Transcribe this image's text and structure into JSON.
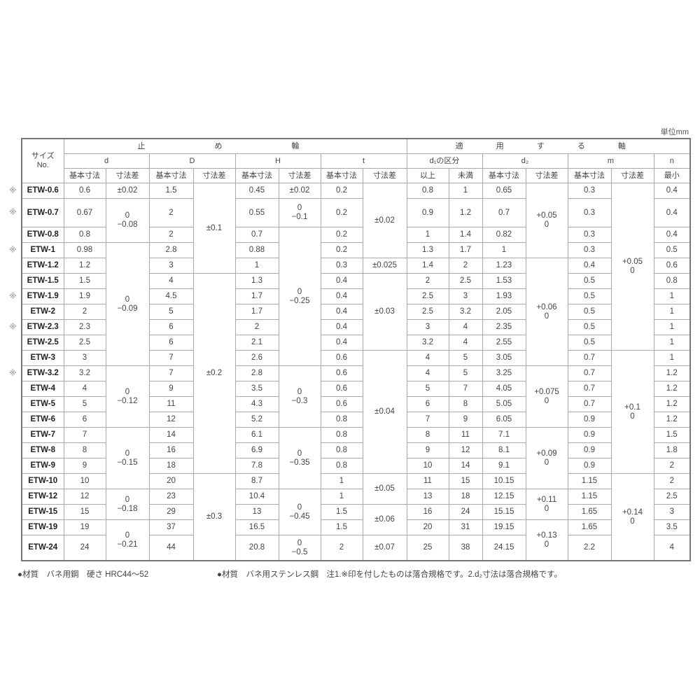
{
  "unit_label": "単位mm",
  "header": {
    "size_no": [
      "サイズ",
      "No."
    ],
    "group_ring": "止 め 輪",
    "group_shaft": "適 用 す る 軸",
    "cols": {
      "d": "d",
      "D": "D",
      "H": "H",
      "t": "t",
      "d1": "d₁の区分",
      "d2": "d₂",
      "m": "m",
      "n": "n"
    },
    "sub": {
      "basic": "基本寸法",
      "tol": "寸法差",
      "min_incl": "以上",
      "max_excl": "未満",
      "minimum": "最小"
    }
  },
  "mark_symbol": "※",
  "rows": [
    {
      "size": "ETW-0.6",
      "mark": true,
      "d": "0.6",
      "D": "1.5",
      "H": "0.45",
      "t": "0.2",
      "d1_min": "0.8",
      "d1_max": "1",
      "d2": "0.65",
      "m": "0.3",
      "n": "0.4"
    },
    {
      "size": "ETW-0.7",
      "mark": true,
      "d": "0.67",
      "D": "2",
      "H": "0.55",
      "t": "0.2",
      "d1_min": "0.9",
      "d1_max": "1.2",
      "d2": "0.7",
      "m": "0.3",
      "n": "0.4"
    },
    {
      "size": "ETW-0.8",
      "mark": false,
      "d": "0.8",
      "D": "2",
      "H": "0.7",
      "t": "0.2",
      "d1_min": "1",
      "d1_max": "1.4",
      "d2": "0.82",
      "m": "0.3",
      "n": "0.4"
    },
    {
      "size": "ETW-1",
      "mark": true,
      "d": "0.98",
      "D": "2.8",
      "H": "0.88",
      "t": "0.2",
      "d1_min": "1.3",
      "d1_max": "1.7",
      "d2": "1",
      "m": "0.3",
      "n": "0.5"
    },
    {
      "size": "ETW-1.2",
      "mark": false,
      "d": "1.2",
      "D": "3",
      "H": "1",
      "t": "0.3",
      "d1_min": "1.4",
      "d1_max": "2",
      "d2": "1.23",
      "m": "0.4",
      "n": "0.6"
    },
    {
      "size": "ETW-1.5",
      "mark": false,
      "d": "1.5",
      "D": "4",
      "H": "1.3",
      "t": "0.4",
      "d1_min": "2",
      "d1_max": "2.5",
      "d2": "1.53",
      "m": "0.5",
      "n": "0.8"
    },
    {
      "size": "ETW-1.9",
      "mark": true,
      "d": "1.9",
      "D": "4.5",
      "H": "1.7",
      "t": "0.4",
      "d1_min": "2.5",
      "d1_max": "3",
      "d2": "1.93",
      "m": "0.5",
      "n": "1"
    },
    {
      "size": "ETW-2",
      "mark": false,
      "d": "2",
      "D": "5",
      "H": "1.7",
      "t": "0.4",
      "d1_min": "2.5",
      "d1_max": "3.2",
      "d2": "2.05",
      "m": "0.5",
      "n": "1"
    },
    {
      "size": "ETW-2.3",
      "mark": true,
      "d": "2.3",
      "D": "6",
      "H": "2",
      "t": "0.4",
      "d1_min": "3",
      "d1_max": "4",
      "d2": "2.35",
      "m": "0.5",
      "n": "1"
    },
    {
      "size": "ETW-2.5",
      "mark": false,
      "d": "2.5",
      "D": "6",
      "H": "2.1",
      "t": "0.4",
      "d1_min": "3.2",
      "d1_max": "4",
      "d2": "2.55",
      "m": "0.5",
      "n": "1"
    },
    {
      "size": "ETW-3",
      "mark": false,
      "d": "3",
      "D": "7",
      "H": "2.6",
      "t": "0.6",
      "d1_min": "4",
      "d1_max": "5",
      "d2": "3.05",
      "m": "0.7",
      "n": "1"
    },
    {
      "size": "ETW-3.2",
      "mark": true,
      "d": "3.2",
      "D": "7",
      "H": "2.8",
      "t": "0.6",
      "d1_min": "4",
      "d1_max": "5",
      "d2": "3.25",
      "m": "0.7",
      "n": "1.2"
    },
    {
      "size": "ETW-4",
      "mark": false,
      "d": "4",
      "D": "9",
      "H": "3.5",
      "t": "0.6",
      "d1_min": "5",
      "d1_max": "7",
      "d2": "4.05",
      "m": "0.7",
      "n": "1.2"
    },
    {
      "size": "ETW-5",
      "mark": false,
      "d": "5",
      "D": "11",
      "H": "4.3",
      "t": "0.6",
      "d1_min": "6",
      "d1_max": "8",
      "d2": "5.05",
      "m": "0.7",
      "n": "1.2"
    },
    {
      "size": "ETW-6",
      "mark": false,
      "d": "6",
      "D": "12",
      "H": "5.2",
      "t": "0.8",
      "d1_min": "7",
      "d1_max": "9",
      "d2": "6.05",
      "m": "0.9",
      "n": "1.2"
    },
    {
      "size": "ETW-7",
      "mark": false,
      "d": "7",
      "D": "14",
      "H": "6.1",
      "t": "0.8",
      "d1_min": "8",
      "d1_max": "11",
      "d2": "7.1",
      "m": "0.9",
      "n": "1.5"
    },
    {
      "size": "ETW-8",
      "mark": false,
      "d": "8",
      "D": "16",
      "H": "6.9",
      "t": "0.8",
      "d1_min": "9",
      "d1_max": "12",
      "d2": "8.1",
      "m": "0.9",
      "n": "1.8"
    },
    {
      "size": "ETW-9",
      "mark": false,
      "d": "9",
      "D": "18",
      "H": "7.8",
      "t": "0.8",
      "d1_min": "10",
      "d1_max": "14",
      "d2": "9.1",
      "m": "0.9",
      "n": "2"
    },
    {
      "size": "ETW-10",
      "mark": false,
      "d": "10",
      "D": "20",
      "H": "8.7",
      "t": "1",
      "d1_min": "11",
      "d1_max": "15",
      "d2": "10.15",
      "m": "1.15",
      "n": "2"
    },
    {
      "size": "ETW-12",
      "mark": false,
      "d": "12",
      "D": "23",
      "H": "10.4",
      "t": "1",
      "d1_min": "13",
      "d1_max": "18",
      "d2": "12.15",
      "m": "1.15",
      "n": "2.5"
    },
    {
      "size": "ETW-15",
      "mark": false,
      "d": "15",
      "D": "29",
      "H": "13",
      "t": "1.5",
      "d1_min": "16",
      "d1_max": "24",
      "d2": "15.15",
      "m": "1.65",
      "n": "3"
    },
    {
      "size": "ETW-19",
      "mark": false,
      "d": "19",
      "D": "37",
      "H": "16.5",
      "t": "1.5",
      "d1_min": "20",
      "d1_max": "31",
      "d2": "19.15",
      "m": "1.65",
      "n": "3.5"
    },
    {
      "size": "ETW-24",
      "mark": false,
      "d": "24",
      "D": "44",
      "H": "20.8",
      "t": "2",
      "d1_min": "25",
      "d1_max": "38",
      "d2": "24.15",
      "m": "2.2",
      "n": "4"
    }
  ],
  "tolerances": {
    "d": [
      {
        "lines": [
          "±0.02"
        ],
        "rows": 1
      },
      {
        "lines": [
          "0",
          "−0.08"
        ],
        "rows": 2
      },
      {
        "lines": [
          "0",
          "−0.09"
        ],
        "rows": 8
      },
      {
        "lines": [
          "0",
          "−0.12"
        ],
        "rows": 4
      },
      {
        "lines": [
          "0",
          "−0.15"
        ],
        "rows": 4
      },
      {
        "lines": [
          "0",
          "−0.18"
        ],
        "rows": 2
      },
      {
        "lines": [
          "0",
          "−0.21"
        ],
        "rows": 2
      }
    ],
    "D": [
      {
        "lines": [
          "±0.1"
        ],
        "rows": 5
      },
      {
        "lines": [
          "±0.2"
        ],
        "rows": 13
      },
      {
        "lines": [
          "±0.3"
        ],
        "rows": 5
      }
    ],
    "H": [
      {
        "lines": [
          "±0.02"
        ],
        "rows": 1
      },
      {
        "lines": [
          "0",
          "−0.1"
        ],
        "rows": 1
      },
      {
        "lines": [
          "0",
          "−0.25"
        ],
        "rows": 9
      },
      {
        "lines": [
          "0",
          "−0.3"
        ],
        "rows": 4
      },
      {
        "lines": [
          "0",
          "−0.35"
        ],
        "rows": 4
      },
      {
        "lines": [
          "0",
          "−0.45"
        ],
        "rows": 3
      },
      {
        "lines": [
          "0",
          "−0.5"
        ],
        "rows": 1
      }
    ],
    "t": [
      {
        "lines": [
          "±0.02"
        ],
        "rows": 4
      },
      {
        "lines": [
          "±0.025"
        ],
        "rows": 1
      },
      {
        "lines": [
          "±0.03"
        ],
        "rows": 5
      },
      {
        "lines": [
          "±0.04"
        ],
        "rows": 8
      },
      {
        "lines": [
          "±0.05"
        ],
        "rows": 2
      },
      {
        "lines": [
          "±0.06"
        ],
        "rows": 2
      },
      {
        "lines": [
          "±0.07"
        ],
        "rows": 1
      }
    ],
    "d2": [
      {
        "lines": [
          "+0.05",
          "0"
        ],
        "rows": 4
      },
      {
        "lines": [
          "+0.06",
          "0"
        ],
        "rows": 7
      },
      {
        "lines": [
          "+0.075",
          "0"
        ],
        "rows": 4
      },
      {
        "lines": [
          "+0.09",
          "0"
        ],
        "rows": 4
      },
      {
        "lines": [
          "+0.11",
          "0"
        ],
        "rows": 2
      },
      {
        "lines": [
          "+0.13",
          "0"
        ],
        "rows": 2
      }
    ],
    "m": [
      {
        "lines": [
          "+0.05",
          "0"
        ],
        "rows": 10
      },
      {
        "lines": [
          "+0.1",
          "0"
        ],
        "rows": 8
      },
      {
        "lines": [
          "+0.14",
          "0"
        ],
        "rows": 5
      }
    ]
  },
  "notes": {
    "left": "●材質　バネ用鋼　硬さ HRC44～52",
    "right": "●材質　バネ用ステンレス鋼　注1.※印を付したものは落合規格です。2.d₂寸法は落合規格です。"
  }
}
